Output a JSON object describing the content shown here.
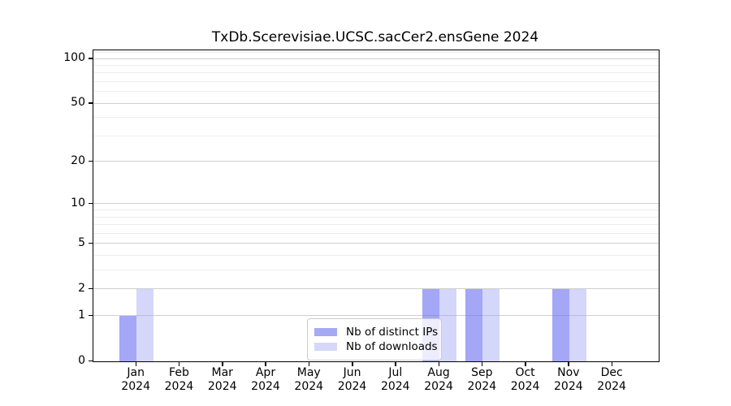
{
  "chart_data": {
    "type": "bar",
    "title": "TxDb.Scerevisiae.UCSC.sacCer2.ensGene 2024",
    "categories": [
      "Jan",
      "Feb",
      "Mar",
      "Apr",
      "May",
      "Jun",
      "Jul",
      "Aug",
      "Sep",
      "Oct",
      "Nov",
      "Dec"
    ],
    "category_year_line": "2024",
    "series": [
      {
        "name": "Nb of distinct IPs",
        "values": [
          1,
          0,
          0,
          0,
          0,
          0,
          0,
          2,
          2,
          0,
          2,
          0
        ],
        "fill": "rgba(108,112,240,0.62)",
        "solid_color": "#a6a9f4"
      },
      {
        "name": "Nb of downloads",
        "values": [
          2,
          0,
          0,
          0,
          0,
          0,
          0,
          2,
          2,
          0,
          2,
          0
        ],
        "fill": "rgba(155,160,243,0.43)",
        "solid_color": "#d6d8fa"
      }
    ],
    "y_axis": {
      "scale": "log10(1+x)",
      "ticks": [
        0,
        1,
        2,
        5,
        10,
        20,
        50,
        100
      ],
      "minor_gridlines": [
        3,
        4,
        6,
        7,
        8,
        9,
        30,
        40,
        60,
        70,
        80,
        90,
        110
      ],
      "max_log_units": 2.061,
      "ylim": [
        0,
        114
      ]
    },
    "x_axis": {
      "tick_years": [
        "2024",
        "2024",
        "2024",
        "2024",
        "2024",
        "2024",
        "2024",
        "2024",
        "2024",
        "2024",
        "2024",
        "2024"
      ]
    },
    "legend_position": "lower center",
    "grid": true
  },
  "style": {
    "grid_major_color": "#cfcfcf",
    "grid_minor_color": "#ededed",
    "spine_color": "#000000",
    "background_color": "#ffffff"
  }
}
